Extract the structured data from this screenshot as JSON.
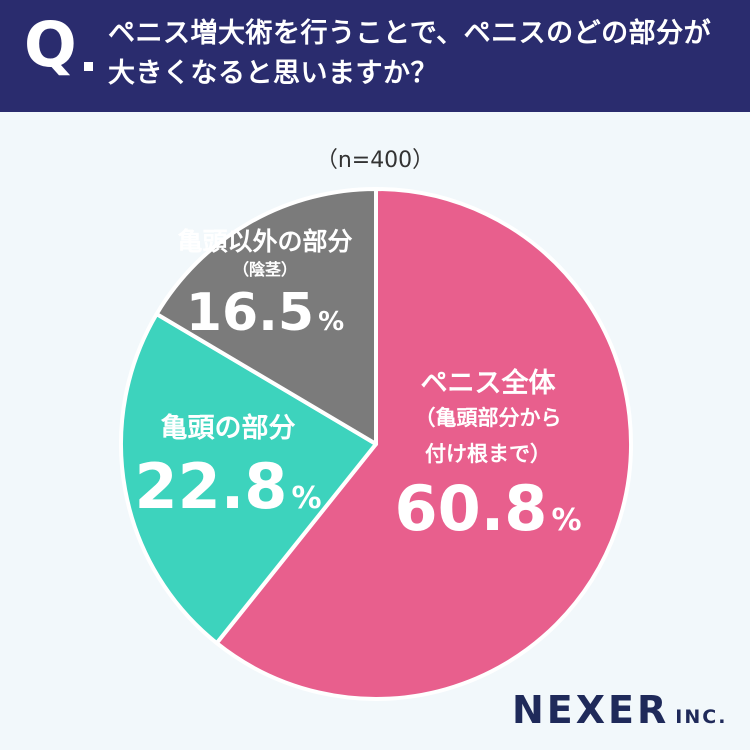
{
  "header": {
    "q_mark": "Q",
    "question_line1": "ペニス増大術を行うことで、ペニスのどの部分が",
    "question_line2": "大きくなると思いますか？"
  },
  "sample_label": "（n=400）",
  "logo": {
    "main": "NEXER",
    "sub": "INC."
  },
  "colors": {
    "header_bg": "#2a2c6e",
    "slice_pink": "#e85f8d",
    "slice_teal": "#3dd3bd",
    "slice_gray": "#7b7b7b",
    "background": "#f2f8fb"
  },
  "chart_data": {
    "type": "pie",
    "start": "12 o'clock",
    "direction": "clockwise",
    "unit": "%",
    "slices": [
      {
        "label": "ペニス全体",
        "sublabel_line1": "（亀頭部分から",
        "sublabel_line2": "付け根まで）",
        "value": 60.8,
        "value_text": "60.8",
        "color": "#e85f8d"
      },
      {
        "label": "亀頭の部分",
        "sublabel_line1": "",
        "sublabel_line2": "",
        "value": 22.8,
        "value_text": "22.8",
        "color": "#3dd3bd"
      },
      {
        "label": "亀頭以外の部分",
        "sublabel_line1": "（陰茎）",
        "sublabel_line2": "",
        "value": 16.5,
        "value_text": "16.5",
        "color": "#7b7b7b"
      }
    ]
  }
}
